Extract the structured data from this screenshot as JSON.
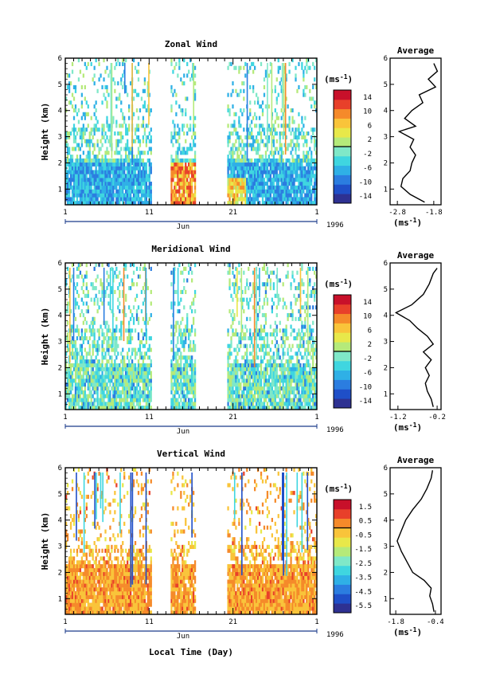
{
  "figure": {
    "xaxis_label": "Local Time (Day)",
    "ylabel": "Height (km)",
    "month_label": "Jun",
    "year_label": "1996",
    "unit_label": "(ms",
    "unit_exp": "-1",
    "avg_title": "Average"
  },
  "colors": {
    "colormap": [
      "#2e3192",
      "#1f4fc8",
      "#2b7de0",
      "#2fb0e6",
      "#3fd6e0",
      "#7fe8c8",
      "#b5ea7a",
      "#e8e84a",
      "#f9c43a",
      "#f58a2a",
      "#e8402a",
      "#c8102a"
    ],
    "frame": "#000000",
    "date_line": "#1a3a8a"
  },
  "chart_data": [
    {
      "type": "heatmap",
      "title": "Zonal Wind",
      "ylabel": "Height (km)",
      "x_ticks": [
        "1",
        "11",
        "21",
        "1"
      ],
      "y_ticks": [
        "1",
        "2",
        "3",
        "4",
        "5",
        "6"
      ],
      "ylim": [
        0.4,
        6
      ],
      "colorbar": {
        "ticks": [
          "14",
          "10",
          "6",
          "2",
          "-2",
          "-6",
          "-10",
          "-14"
        ],
        "range": [
          -16,
          16
        ]
      },
      "average": {
        "title": "Average",
        "xlabel": "(ms",
        "x_ticks": [
          "-2.8",
          "-1.8"
        ],
        "xlim": [
          -3.0,
          -1.6
        ],
        "y_ticks": [
          "1",
          "2",
          "3",
          "4",
          "5",
          "6"
        ],
        "profile": [
          {
            "h": 0.5,
            "v": -2.05
          },
          {
            "h": 0.8,
            "v": -2.45
          },
          {
            "h": 1.1,
            "v": -2.7
          },
          {
            "h": 1.4,
            "v": -2.65
          },
          {
            "h": 1.7,
            "v": -2.45
          },
          {
            "h": 2.0,
            "v": -2.4
          },
          {
            "h": 2.3,
            "v": -2.3
          },
          {
            "h": 2.6,
            "v": -2.45
          },
          {
            "h": 2.9,
            "v": -2.35
          },
          {
            "h": 3.2,
            "v": -2.75
          },
          {
            "h": 3.4,
            "v": -2.3
          },
          {
            "h": 3.7,
            "v": -2.6
          },
          {
            "h": 4.0,
            "v": -2.4
          },
          {
            "h": 4.3,
            "v": -2.1
          },
          {
            "h": 4.6,
            "v": -2.2
          },
          {
            "h": 4.9,
            "v": -1.75
          },
          {
            "h": 5.2,
            "v": -1.95
          },
          {
            "h": 5.5,
            "v": -1.7
          },
          {
            "h": 5.8,
            "v": -1.8
          }
        ]
      }
    },
    {
      "type": "heatmap",
      "title": "Meridional Wind",
      "ylabel": "Height (km)",
      "x_ticks": [
        "1",
        "11",
        "21",
        "1"
      ],
      "y_ticks": [
        "1",
        "2",
        "3",
        "4",
        "5",
        "6"
      ],
      "ylim": [
        0.4,
        6
      ],
      "colorbar": {
        "ticks": [
          "14",
          "10",
          "6",
          "2",
          "-2",
          "-6",
          "-10",
          "-14"
        ],
        "range": [
          -16,
          16
        ]
      },
      "average": {
        "title": "Average",
        "xlabel": "(ms",
        "x_ticks": [
          "-1.2",
          "-0.2"
        ],
        "xlim": [
          -1.4,
          -0.1
        ],
        "y_ticks": [
          "1",
          "2",
          "3",
          "4",
          "5",
          "6"
        ],
        "profile": [
          {
            "h": 0.5,
            "v": -0.3
          },
          {
            "h": 0.8,
            "v": -0.35
          },
          {
            "h": 1.1,
            "v": -0.45
          },
          {
            "h": 1.4,
            "v": -0.5
          },
          {
            "h": 1.7,
            "v": -0.4
          },
          {
            "h": 2.0,
            "v": -0.5
          },
          {
            "h": 2.3,
            "v": -0.35
          },
          {
            "h": 2.6,
            "v": -0.55
          },
          {
            "h": 2.9,
            "v": -0.3
          },
          {
            "h": 3.2,
            "v": -0.45
          },
          {
            "h": 3.5,
            "v": -0.7
          },
          {
            "h": 3.8,
            "v": -0.9
          },
          {
            "h": 4.1,
            "v": -1.25
          },
          {
            "h": 4.4,
            "v": -0.85
          },
          {
            "h": 4.8,
            "v": -0.55
          },
          {
            "h": 5.2,
            "v": -0.4
          },
          {
            "h": 5.6,
            "v": -0.3
          },
          {
            "h": 5.8,
            "v": -0.2
          }
        ]
      }
    },
    {
      "type": "heatmap",
      "title": "Vertical Wind",
      "ylabel": "Height (km)",
      "x_ticks": [
        "1",
        "11",
        "21",
        "1"
      ],
      "y_ticks": [
        "1",
        "2",
        "3",
        "4",
        "5",
        "6"
      ],
      "ylim": [
        0.4,
        6
      ],
      "colorbar": {
        "ticks": [
          "1.5",
          "0.5",
          "-0.5",
          "-1.5",
          "-2.5",
          "-3.5",
          "-4.5",
          "-5.5"
        ],
        "range": [
          -6,
          2
        ]
      },
      "average": {
        "title": "Average",
        "xlabel": "(ms",
        "x_ticks": [
          "-1.8",
          "-0.4"
        ],
        "xlim": [
          -2.0,
          -0.2
        ],
        "y_ticks": [
          "1",
          "2",
          "3",
          "4",
          "5",
          "6"
        ],
        "profile": [
          {
            "h": 0.5,
            "v": -0.45
          },
          {
            "h": 0.8,
            "v": -0.5
          },
          {
            "h": 1.1,
            "v": -0.6
          },
          {
            "h": 1.4,
            "v": -0.55
          },
          {
            "h": 1.7,
            "v": -0.8
          },
          {
            "h": 2.0,
            "v": -1.2
          },
          {
            "h": 2.4,
            "v": -1.4
          },
          {
            "h": 2.8,
            "v": -1.6
          },
          {
            "h": 3.2,
            "v": -1.75
          },
          {
            "h": 3.6,
            "v": -1.6
          },
          {
            "h": 4.0,
            "v": -1.45
          },
          {
            "h": 4.4,
            "v": -1.2
          },
          {
            "h": 4.8,
            "v": -0.9
          },
          {
            "h": 5.2,
            "v": -0.7
          },
          {
            "h": 5.6,
            "v": -0.55
          },
          {
            "h": 5.9,
            "v": -0.5
          }
        ]
      }
    }
  ]
}
